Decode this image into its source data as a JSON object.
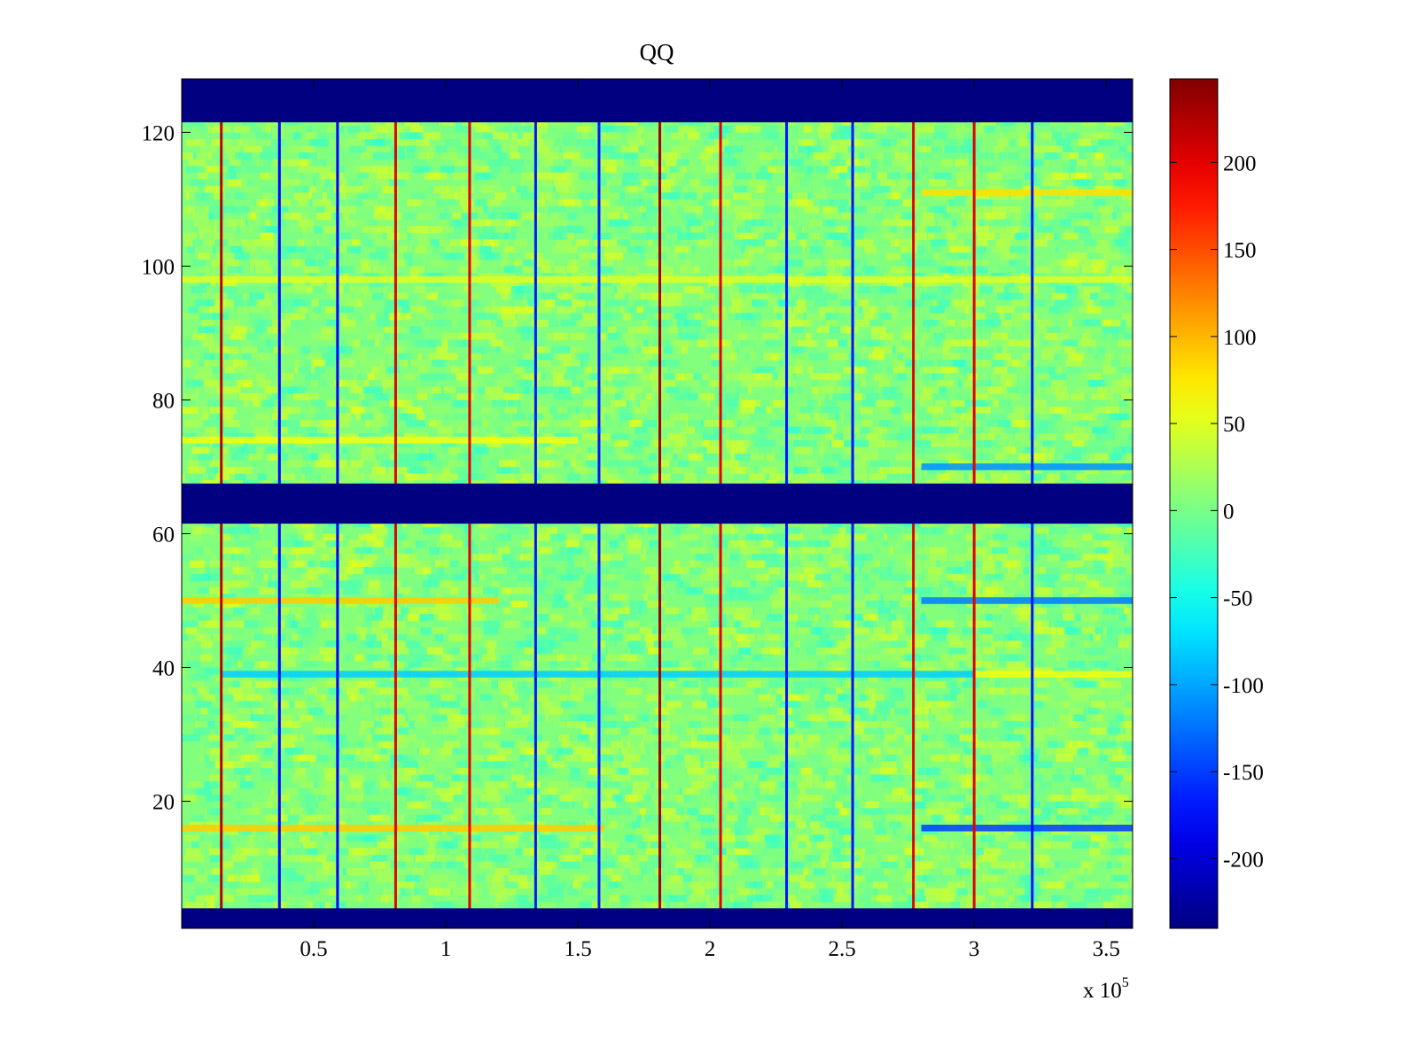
{
  "chart_data": {
    "type": "heatmap",
    "title": "QQ",
    "xlabel": "",
    "ylabel": "",
    "xlim": [
      0,
      360000
    ],
    "ylim": [
      1,
      128
    ],
    "x_multiplier_label": {
      "base": "x 10",
      "exponent": "5"
    },
    "x_ticks": [
      {
        "value": 50000,
        "label": "0.5"
      },
      {
        "value": 100000,
        "label": "1"
      },
      {
        "value": 150000,
        "label": "1.5"
      },
      {
        "value": 200000,
        "label": "2"
      },
      {
        "value": 250000,
        "label": "2.5"
      },
      {
        "value": 300000,
        "label": "3"
      },
      {
        "value": 350000,
        "label": "3.5"
      }
    ],
    "y_ticks": [
      {
        "value": 20,
        "label": "20"
      },
      {
        "value": 40,
        "label": "40"
      },
      {
        "value": 60,
        "label": "60"
      },
      {
        "value": 80,
        "label": "80"
      },
      {
        "value": 100,
        "label": "100"
      },
      {
        "value": 120,
        "label": "120"
      }
    ],
    "colorbar": {
      "colormap": "jet",
      "clim": [
        -240,
        248
      ],
      "ticks": [
        {
          "value": 200,
          "label": "200"
        },
        {
          "value": 150,
          "label": "150"
        },
        {
          "value": 100,
          "label": "100"
        },
        {
          "value": 50,
          "label": "50"
        },
        {
          "value": 0,
          "label": "0"
        },
        {
          "value": -50,
          "label": "-50"
        },
        {
          "value": -100,
          "label": "-100"
        },
        {
          "value": -150,
          "label": "-150"
        },
        {
          "value": -200,
          "label": "-200"
        }
      ]
    },
    "background_value": 5,
    "masked_rows": [
      {
        "from": 1,
        "to": 4,
        "value": -240
      },
      {
        "from": 61.5,
        "to": 67.5,
        "value": -240
      },
      {
        "from": 121.5,
        "to": 128,
        "value": -240
      }
    ],
    "vertical_stripes": [
      {
        "x": 15000,
        "value": 220
      },
      {
        "x": 37000,
        "value": -180
      },
      {
        "x": 59000,
        "value": -180
      },
      {
        "x": 81000,
        "value": 200
      },
      {
        "x": 109000,
        "value": 200
      },
      {
        "x": 134000,
        "value": -170
      },
      {
        "x": 158000,
        "value": -170
      },
      {
        "x": 181000,
        "value": 230
      },
      {
        "x": 204000,
        "value": 200
      },
      {
        "x": 229000,
        "value": -170
      },
      {
        "x": 254000,
        "value": -170
      },
      {
        "x": 277000,
        "value": 200
      },
      {
        "x": 300000,
        "value": 200
      },
      {
        "x": 322000,
        "value": -170
      }
    ],
    "row_bands": [
      {
        "row": 16,
        "x_from": 0,
        "x_to": 160000,
        "value": 90
      },
      {
        "row": 16,
        "x_from": 280000,
        "x_to": 360000,
        "value": -150
      },
      {
        "row": 39,
        "x_from": 15000,
        "x_to": 300000,
        "value": -80
      },
      {
        "row": 39,
        "x_from": 300000,
        "x_to": 360000,
        "value": 60
      },
      {
        "row": 50,
        "x_from": 0,
        "x_to": 120000,
        "value": 90
      },
      {
        "row": 50,
        "x_from": 280000,
        "x_to": 360000,
        "value": -120
      },
      {
        "row": 70,
        "x_from": 280000,
        "x_to": 360000,
        "value": -110
      },
      {
        "row": 74,
        "x_from": 0,
        "x_to": 150000,
        "value": 60
      },
      {
        "row": 98,
        "x_from": 0,
        "x_to": 360000,
        "value": 50
      },
      {
        "row": 111,
        "x_from": 280000,
        "x_to": 360000,
        "value": 80
      }
    ]
  }
}
